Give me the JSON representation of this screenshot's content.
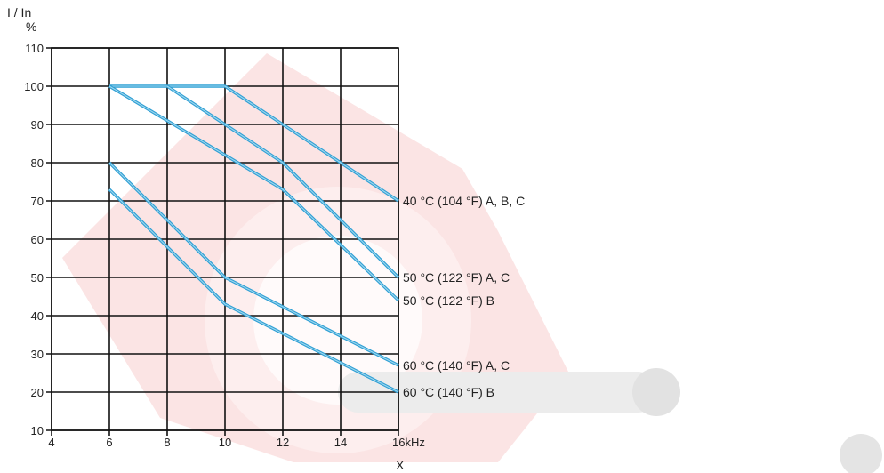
{
  "chart_data": {
    "type": "line",
    "ylabel_line1": "I / In",
    "ylabel_line2": "%",
    "xlabel": "X",
    "x_unit": "kHz",
    "xlim": [
      4,
      16
    ],
    "ylim": [
      10,
      110
    ],
    "x_ticks": [
      4,
      6,
      8,
      10,
      12,
      14,
      16
    ],
    "y_ticks": [
      10,
      20,
      30,
      40,
      50,
      60,
      70,
      80,
      90,
      100,
      110
    ],
    "x_tick_labels": [
      "4",
      "6",
      "8",
      "10",
      "12",
      "14",
      "16kHz"
    ],
    "y_tick_labels": [
      "10",
      "20",
      "30",
      "40",
      "50",
      "60",
      "70",
      "80",
      "90",
      "100",
      "110"
    ],
    "grid": true,
    "series": [
      {
        "name": "40 °C (104 °F) A, B, C",
        "x": [
          6,
          10,
          12,
          16
        ],
        "y": [
          100,
          100,
          90,
          70
        ]
      },
      {
        "name": "50 °C (122 °F) A, C",
        "x": [
          8,
          12,
          16
        ],
        "y": [
          100,
          80,
          50
        ]
      },
      {
        "name": "50 °C (122 °F) B",
        "x": [
          6,
          12,
          16
        ],
        "y": [
          100,
          73,
          44
        ]
      },
      {
        "name": "60 °C (140 °F) A, C",
        "x": [
          6,
          10,
          16
        ],
        "y": [
          80,
          50,
          27
        ]
      },
      {
        "name": "60 °C (140 °F) B",
        "x": [
          6,
          10,
          16
        ],
        "y": [
          73,
          43,
          20
        ]
      }
    ],
    "colors": {
      "line": "#2f9fd4",
      "line_highlight": "#9fd8ef",
      "grid": "#111111",
      "watermark": "#fbe3e3"
    }
  }
}
